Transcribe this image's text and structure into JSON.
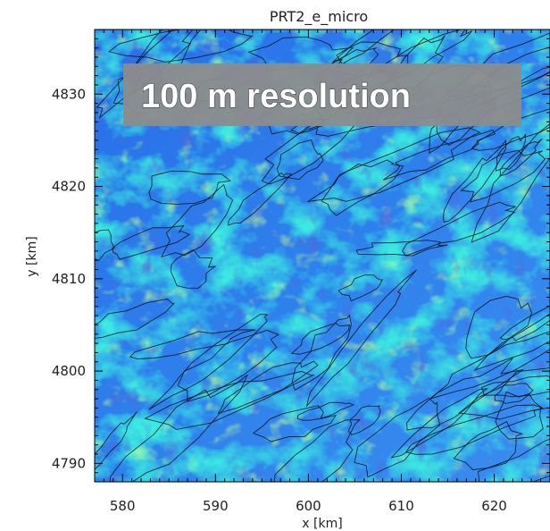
{
  "chart_data": {
    "type": "heatmap",
    "title": "PRT2_e_micro",
    "xlabel": "x [km]",
    "ylabel": "y [km]",
    "xlim": [
      577,
      626
    ],
    "ylim": [
      4788,
      4837
    ],
    "xticks": [
      580,
      590,
      600,
      610,
      620
    ],
    "yticks": [
      4790,
      4800,
      4810,
      4820,
      4830
    ],
    "annotation": "100 m resolution",
    "colorscale": [
      "#1028c8",
      "#1e5ae6",
      "#3a8cf0",
      "#5ab4f0",
      "#3ce8e0",
      "#46f096",
      "#a0f03c"
    ],
    "contour_color": "#000000",
    "banner_color": "#8c8c8c",
    "grid": false,
    "legend": "none"
  }
}
